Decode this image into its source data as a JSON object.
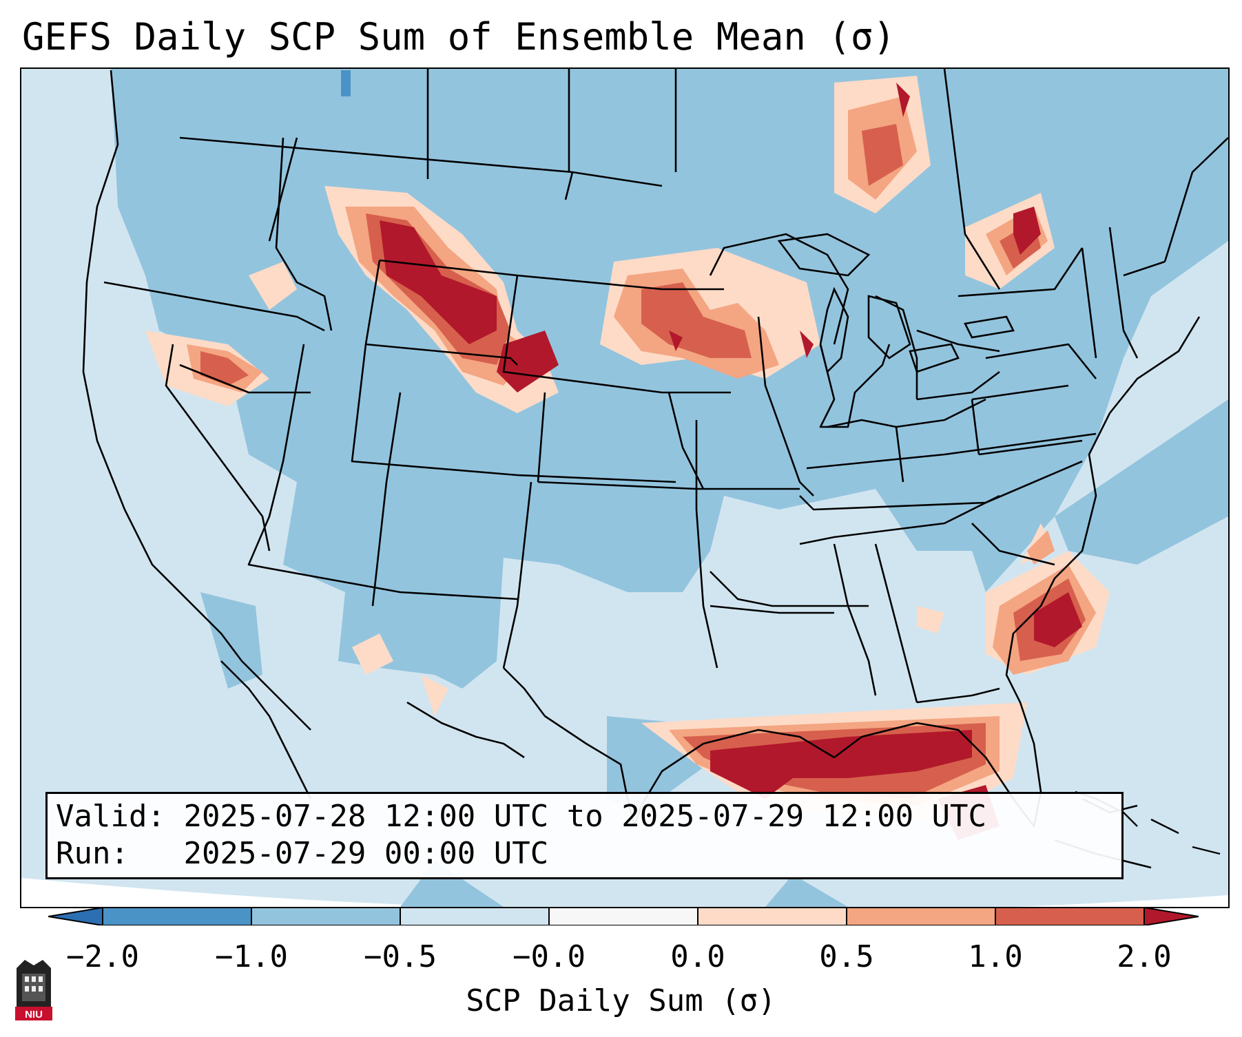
{
  "title": "GEFS Daily SCP Sum of Ensemble Mean (σ)",
  "info": {
    "valid_label": "Valid:",
    "valid_value": "2025-07-28 12:00 UTC to 2025-07-29 12:00 UTC",
    "run_label": "Run:",
    "run_value": "2025-07-29 00:00 UTC"
  },
  "colorbar": {
    "label": "SCP Daily Sum (σ)",
    "ticks": [
      "−2.0",
      "−1.0",
      "−0.5",
      "−0.0",
      "0.0",
      "0.5",
      "1.0",
      "2.0"
    ],
    "colors": {
      "lt_neg2": "#2c6fb2",
      "neg2_neg1": "#4a93c6",
      "neg1_neg05": "#93c4de",
      "neg05_neg0": "#d1e5f0",
      "zero": "#f7f7f7",
      "zero_05": "#fddbc7",
      "p05_1": "#f4a582",
      "p1_2": "#d6604d",
      "gt2": "#b2182b"
    }
  },
  "logo": {
    "text": "NIU"
  },
  "map": {
    "background_color": "#d1e5f0",
    "features": [
      "state-borders",
      "coastlines",
      "country-borders",
      "great-lakes"
    ],
    "anomaly_regions": [
      "northern-rockies",
      "western-dakotas",
      "upper-midwest",
      "quebec",
      "southern-ontario",
      "gulf-coast",
      "florida",
      "carolina-coast",
      "oregon-idaho"
    ]
  }
}
